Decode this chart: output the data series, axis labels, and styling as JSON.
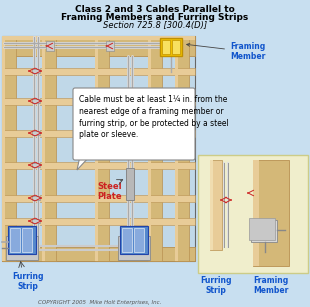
{
  "title_line1": "Class 2 and 3 Cables Parallel to",
  "title_line2": "Framing Members and Furring Strips",
  "title_line3": "Section 725.8 [300.4(D)]",
  "bg_color": "#c8dff0",
  "callout_box_text": "Cable must be at least 1¼ in. from the\nnearest edge of a framing member or\nfurring strip, or be protected by a steel\nplate or sleeve.",
  "steel_plate_label": "Steel\nPlate",
  "furring_strip_label": "Furring\nStrip",
  "framing_member_label": "Framing\nMember",
  "furring_strip_label2": "Furring\nStrip",
  "framing_member_label2": "Framing\nMember",
  "copyright": "COPYRIGHT 2005  Mike Holt Enterprises, Inc.",
  "wood_color": "#d4b878",
  "wood_dark": "#b89050",
  "wood_light": "#e8cc98",
  "blue_box_color": "#5588cc",
  "blue_box_light": "#88aadd",
  "yellow_bg": "#f0eecc",
  "steel_plate_color": "#b0b0b0",
  "red_color": "#cc2222",
  "wall_color": "#c0d8e8",
  "border_color": "#808080"
}
